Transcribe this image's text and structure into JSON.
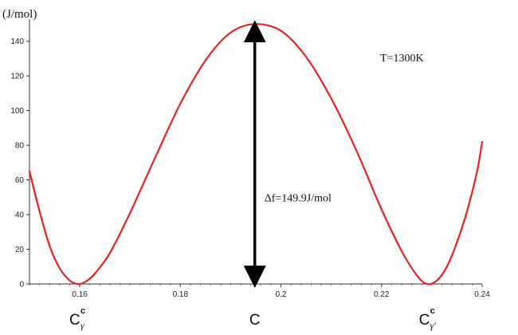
{
  "chart_data": {
    "type": "line",
    "ylabel": "(J/mol)",
    "xlabel": "C",
    "xlim": [
      0.15,
      0.24
    ],
    "ylim": [
      0,
      150
    ],
    "x_ticks": [
      0.16,
      0.18,
      0.2,
      0.22,
      0.24
    ],
    "x_tick_labels": [
      "0.16",
      "0.18",
      "0.2",
      "0.22",
      "0.24"
    ],
    "y_ticks": [
      0,
      20,
      40,
      60,
      80,
      100,
      120,
      140
    ],
    "y_tick_labels": [
      "0",
      "20",
      "40",
      "60",
      "80",
      "100",
      "120",
      "140"
    ],
    "grid": false,
    "series": [
      {
        "color": "#e8231f",
        "x": [
          0.15,
          0.152,
          0.154,
          0.156,
          0.158,
          0.1595,
          0.161,
          0.163,
          0.166,
          0.17,
          0.175,
          0.18,
          0.185,
          0.19,
          0.1948,
          0.2,
          0.205,
          0.21,
          0.215,
          0.22,
          0.224,
          0.227,
          0.229,
          0.231,
          0.233,
          0.235,
          0.237,
          0.239,
          0.24
        ],
        "y": [
          65,
          42,
          22,
          9,
          2,
          0,
          1,
          6,
          18,
          41,
          73,
          104,
          129,
          145,
          149.9,
          146,
          131,
          107,
          77,
          43,
          19,
          5,
          0,
          2,
          10,
          24,
          42,
          65,
          82
        ]
      }
    ],
    "annotations": {
      "temperature": "T=1300K",
      "delta": "Δf=149.9J/mol",
      "delta_arrow": {
        "x": 0.1948,
        "y_from": 0,
        "y_to": 149.9
      },
      "marker_left": {
        "x": 0.1595,
        "base": "C",
        "sup": "c",
        "sub": "γ"
      },
      "marker_center": {
        "x": 0.1948,
        "label": "C"
      },
      "marker_right": {
        "x": 0.229,
        "base": "C",
        "sup": "c",
        "sub": "γ'"
      }
    }
  }
}
